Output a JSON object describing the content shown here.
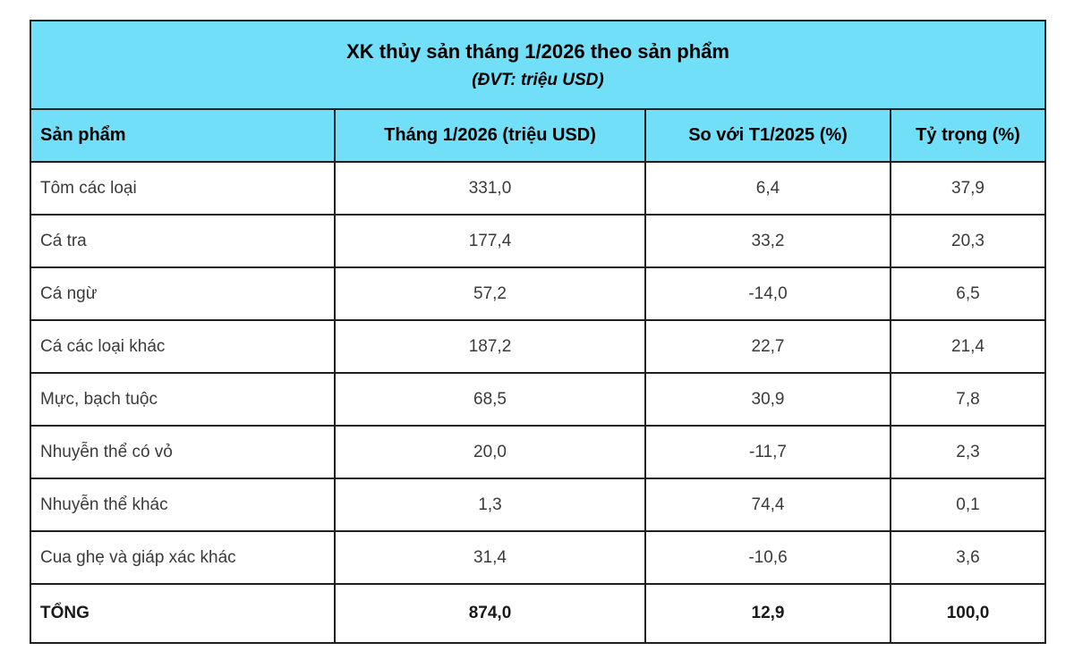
{
  "colors": {
    "header_bg": "#71DFF8",
    "border": "#1f1f1f",
    "body_text": "#3a3a3a",
    "header_text": "#000000"
  },
  "chart_data": {
    "type": "table",
    "title": "XK thủy sản tháng 1/2026 theo sản phẩm",
    "subtitle": "(ĐVT: triệu USD)",
    "columns": [
      "Sản phẩm",
      "Tháng 1/2026 (triệu USD)",
      "So với T1/2025 (%)",
      "Tỷ trọng (%)"
    ],
    "rows": [
      {
        "label": "Tôm các loại",
        "value": "331,0",
        "yoy": "6,4",
        "share": "37,9"
      },
      {
        "label": "Cá tra",
        "value": "177,4",
        "yoy": "33,2",
        "share": "20,3"
      },
      {
        "label": "Cá ngừ",
        "value": "57,2",
        "yoy": "-14,0",
        "share": "6,5"
      },
      {
        "label": "Cá các loại khác",
        "value": "187,2",
        "yoy": "22,7",
        "share": "21,4"
      },
      {
        "label": "Mực, bạch tuộc",
        "value": "68,5",
        "yoy": "30,9",
        "share": "7,8"
      },
      {
        "label": "Nhuyễn thể có vỏ",
        "value": "20,0",
        "yoy": "-11,7",
        "share": "2,3"
      },
      {
        "label": "Nhuyễn thể khác",
        "value": "1,3",
        "yoy": "74,4",
        "share": "0,1"
      },
      {
        "label": "Cua ghẹ và giáp xác khác",
        "value": "31,4",
        "yoy": "-10,6",
        "share": "3,6"
      }
    ],
    "total": {
      "label": "TỔNG",
      "value": "874,0",
      "yoy": "12,9",
      "share": "100,0"
    }
  }
}
